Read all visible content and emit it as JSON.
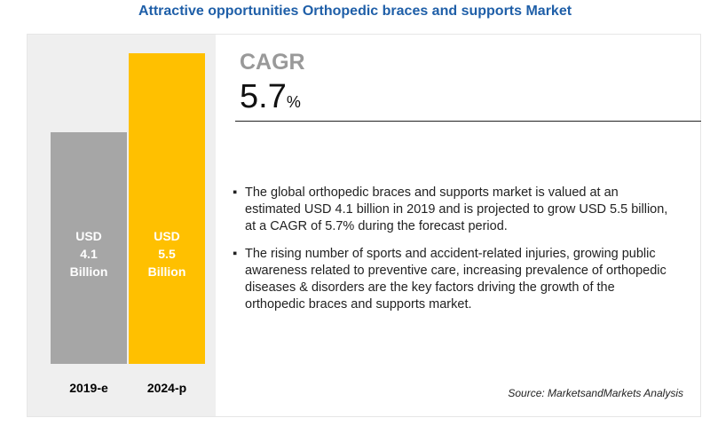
{
  "chart_data": {
    "type": "bar",
    "title": "Attractive opportunities Orthopedic braces and supports Market",
    "categories": [
      "2019-e",
      "2024-p"
    ],
    "values": [
      4.1,
      5.5
    ],
    "value_labels": [
      "USD\n4.1\nBillion",
      "USD\n5.5\nBillion"
    ],
    "colors": [
      "#a6a6a6",
      "#ffc000"
    ]
  },
  "cagr": {
    "label": "CAGR",
    "value": 5.7,
    "unit": "%"
  },
  "bullets": [
    "The global orthopedic braces and supports market is valued at an estimated USD 4.1 billion in 2019 and is projected to grow USD 5.5 billion, at a  CAGR of 5.7% during the forecast period.",
    "The rising number of sports and accident-related injuries, growing public awareness related to preventive care, increasing prevalence of orthopedic diseases & disorders are the key factors driving the growth of the orthopedic braces and supports market."
  ],
  "source": "Source: MarketsandMarkets Analysis"
}
